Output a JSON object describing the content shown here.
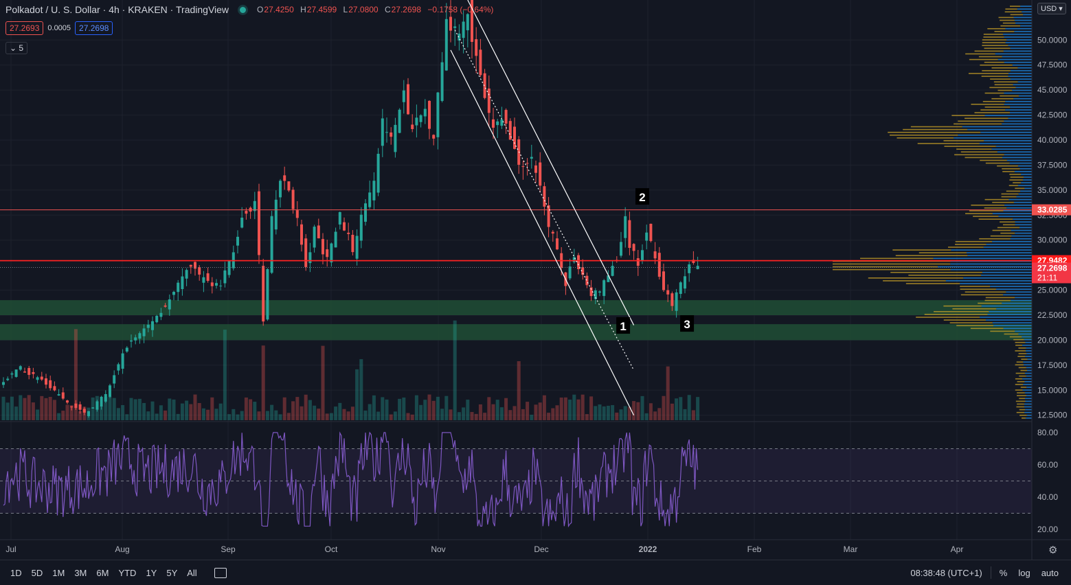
{
  "header": {
    "symbol": "Polkadot / U. S. Dollar",
    "interval": "4h",
    "exchange": "KRAKEN",
    "provider": "TradingView",
    "ohlc": {
      "open_label": "O",
      "open": "27.4250",
      "high_label": "H",
      "high": "27.4599",
      "low_label": "L",
      "low": "27.0800",
      "close_label": "C",
      "close": "27.2698",
      "change": "−0.1758 (−0.64%)"
    },
    "bid": "27.2693",
    "spread": "0.0005",
    "ask": "27.2698",
    "collapse_label": "5",
    "currency": "USD"
  },
  "colors": {
    "background": "#131722",
    "up": "#26a69a",
    "down": "#ef5350",
    "grid": "#1e222d",
    "rsi": "#7e57c2",
    "vp_up": "#1e88e5",
    "vp_down": "#c9a227",
    "support_zone": "#1f4a34"
  },
  "chart_data": {
    "type": "candlestick",
    "price_axis": {
      "ticks": [
        "50.0000",
        "47.5000",
        "45.0000",
        "42.5000",
        "40.0000",
        "37.5000",
        "35.0000",
        "32.5000",
        "30.0000",
        "25.0000",
        "22.5000",
        "20.0000",
        "17.5000",
        "15.0000",
        "12.5000"
      ],
      "range": [
        12,
        54
      ]
    },
    "time_axis": [
      "Jul",
      "Aug",
      "Sep",
      "Oct",
      "Nov",
      "Dec",
      "2022",
      "Feb",
      "Mar",
      "Apr"
    ],
    "price_path": [
      [
        0,
        15.5
      ],
      [
        5,
        17.2
      ],
      [
        10,
        16.0
      ],
      [
        15,
        14.0
      ],
      [
        20,
        12.7
      ],
      [
        25,
        14.5
      ],
      [
        30,
        19.5
      ],
      [
        35,
        21.5
      ],
      [
        40,
        24.0
      ],
      [
        45,
        27.5
      ],
      [
        48,
        26.0
      ],
      [
        52,
        25.5
      ],
      [
        55,
        29.0
      ],
      [
        57,
        32.0
      ],
      [
        60,
        34.0
      ],
      [
        62,
        22.0
      ],
      [
        64,
        32.0
      ],
      [
        66,
        36.0
      ],
      [
        68,
        35.0
      ],
      [
        70,
        32.0
      ],
      [
        72,
        27.0
      ],
      [
        74,
        31.0
      ],
      [
        77,
        28.0
      ],
      [
        80,
        32.5
      ],
      [
        83,
        29.0
      ],
      [
        86,
        34.0
      ],
      [
        88,
        35.5
      ],
      [
        90,
        42.0
      ],
      [
        92,
        40.0
      ],
      [
        95,
        44.5
      ],
      [
        97,
        41.0
      ],
      [
        100,
        43.0
      ],
      [
        102,
        40.5
      ],
      [
        105,
        52.0
      ],
      [
        108,
        51.0
      ],
      [
        110,
        53.0
      ],
      [
        112,
        48.0
      ],
      [
        114,
        44.0
      ],
      [
        116,
        41.0
      ],
      [
        118,
        42.5
      ],
      [
        121,
        39.0
      ],
      [
        123,
        37.0
      ],
      [
        125,
        38.5
      ],
      [
        127,
        35.0
      ],
      [
        129,
        31.0
      ],
      [
        131,
        29.5
      ],
      [
        133,
        25.5
      ],
      [
        135,
        28.5
      ],
      [
        137,
        26.5
      ],
      [
        139,
        24.5
      ],
      [
        141,
        25.0
      ],
      [
        143,
        26.5
      ],
      [
        145,
        28.0
      ],
      [
        147,
        32.0
      ],
      [
        148,
        29.5
      ],
      [
        150,
        27.5
      ],
      [
        152,
        31.0
      ],
      [
        154,
        28.5
      ],
      [
        156,
        25.0
      ],
      [
        158,
        23.5
      ],
      [
        160,
        25.5
      ],
      [
        162,
        27.5
      ],
      [
        163.5,
        27.27
      ]
    ],
    "horizontal_levels": [
      {
        "value": 33.0285,
        "label": "33.0285",
        "color": "#ef5350"
      },
      {
        "value": 27.9482,
        "label": "27.9482",
        "color": "#ff2222"
      }
    ],
    "current_price": {
      "value": 27.2698,
      "label": "27.2698",
      "countdown": "21:11"
    },
    "support_zones": [
      [
        22.5,
        24.0
      ],
      [
        20.0,
        21.6
      ]
    ],
    "channel_lines": [
      {
        "from": [
          105,
          49.0
        ],
        "to": [
          148,
          12.5
        ]
      },
      {
        "from": [
          109,
          54.0
        ],
        "to": [
          148,
          21.5
        ]
      }
    ],
    "dotted_line": {
      "from": [
        106,
        51.0
      ],
      "to": [
        148,
        17.0
      ]
    },
    "annotations": [
      {
        "text": "1",
        "at": [
          145.5,
          21.4
        ]
      },
      {
        "text": "2",
        "at": [
          150,
          34.3
        ]
      },
      {
        "text": "3",
        "at": [
          160.5,
          21.6
        ]
      }
    ],
    "rsi": {
      "ticks": [
        "80.00",
        "60.00",
        "40.00",
        "20.00"
      ],
      "upper_band": 70,
      "middle": 50,
      "lower_band": 30
    }
  },
  "bottom_bar": {
    "ranges": [
      "1D",
      "5D",
      "1M",
      "3M",
      "6M",
      "YTD",
      "1Y",
      "5Y",
      "All"
    ],
    "clock": "08:38:48 (UTC+1)",
    "percent_label": "%",
    "log_label": "log",
    "auto_label": "auto"
  }
}
